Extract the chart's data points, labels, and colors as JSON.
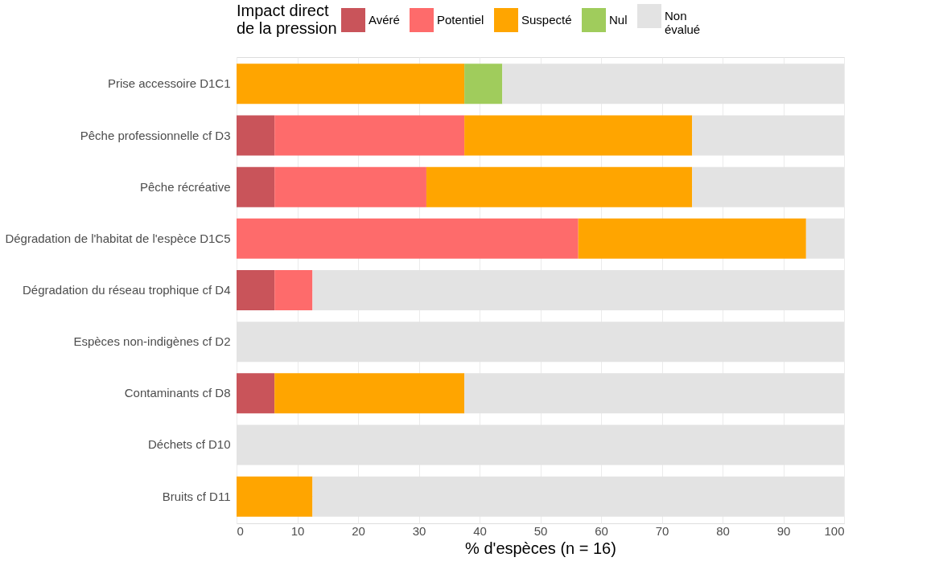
{
  "chart_data": {
    "type": "bar",
    "orientation": "horizontal",
    "stacked": true,
    "xlabel": "% d'espèces (n = 16)",
    "legend_title": "Impact direct\nde la pression",
    "legend": "top",
    "grid": true,
    "categories": [
      "Prise accessoire D1C1",
      "Pêche professionnelle cf D3",
      "Pêche récréative",
      "Dégradation de l'habitat de l'espèce D1C5",
      "Dégradation du réseau trophique cf D4",
      "Espèces non-indigènes cf D2",
      "Contaminants cf D8",
      "Déchets cf D10",
      "Bruits cf D11"
    ],
    "xlim": [
      0,
      100
    ],
    "xticks": [
      0,
      10,
      20,
      30,
      40,
      50,
      60,
      70,
      80,
      90,
      100
    ],
    "series": [
      {
        "name": "Avéré",
        "color": "#c9545a",
        "values": [
          0,
          6.25,
          6.25,
          0,
          6.25,
          0,
          6.25,
          0,
          0
        ]
      },
      {
        "name": "Potentiel",
        "color": "#fe6b6b",
        "values": [
          0,
          31.25,
          25,
          56.25,
          6.25,
          0,
          0,
          0,
          0
        ]
      },
      {
        "name": "Suspecté",
        "color": "#ffa500",
        "values": [
          37.5,
          37.5,
          43.75,
          37.5,
          0,
          0,
          31.25,
          0,
          12.5
        ]
      },
      {
        "name": "Nul",
        "color": "#a0cc5c",
        "values": [
          6.25,
          0,
          0,
          0,
          0,
          0,
          0,
          0,
          0
        ]
      },
      {
        "name": "Non\névalué",
        "color": "#e3e3e3",
        "values": [
          56.25,
          25,
          25,
          6.25,
          87.5,
          100,
          62.5,
          100,
          87.5
        ]
      }
    ]
  }
}
